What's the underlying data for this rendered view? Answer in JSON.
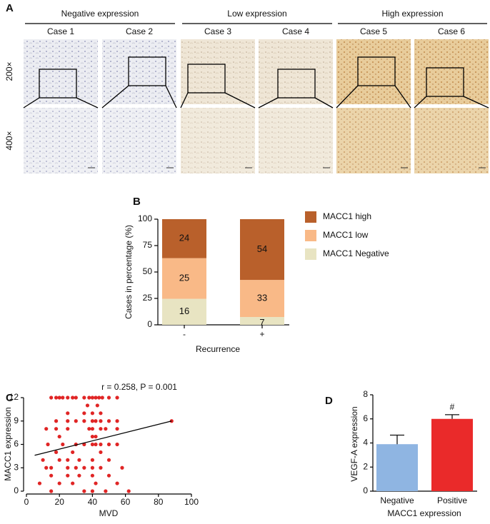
{
  "panel_a": {
    "label": "A",
    "groups": [
      "Negative expression",
      "Low expression",
      "High expression"
    ],
    "cases": [
      "Case 1",
      "Case 2",
      "Case 3",
      "Case 4",
      "Case 5",
      "Case 6"
    ],
    "magnifications": [
      "200×",
      "400×"
    ]
  },
  "chart_data": [
    {
      "type": "stacked_bar",
      "label": "B",
      "ylabel": "Cases in percentage (%)",
      "xlabel": "Recurrence",
      "categories": [
        "-",
        "+"
      ],
      "ylim": [
        0,
        100
      ],
      "yticks": [
        0,
        25,
        50,
        75,
        100
      ],
      "series": [
        {
          "name": "MACC1 Negative",
          "color": "#e8e4c2",
          "values": [
            24.6,
            7.4
          ],
          "counts": [
            16,
            7
          ]
        },
        {
          "name": "MACC1 low",
          "color": "#f9b987",
          "values": [
            38.5,
            35.1
          ],
          "counts": [
            25,
            33
          ]
        },
        {
          "name": "MACC1 high",
          "color": "#b9602b",
          "values": [
            36.9,
            57.5
          ],
          "counts": [
            24,
            54
          ]
        }
      ]
    },
    {
      "type": "scatter",
      "label": "C",
      "annotation": "r = 0.258,  P = 0.001",
      "xlabel": "MVD",
      "ylabel": "MACC1 expression",
      "color": "#e02525",
      "x": [
        15,
        18,
        20,
        22,
        25,
        28,
        30,
        35,
        38,
        40,
        42,
        44,
        46,
        50,
        55,
        37,
        43,
        25,
        35,
        40,
        45,
        18,
        25,
        30,
        35,
        40,
        42,
        45,
        50,
        55,
        88,
        12,
        18,
        25,
        38,
        40,
        45,
        48,
        55,
        20,
        40,
        42,
        13,
        22,
        30,
        35,
        40,
        42,
        45,
        50,
        55,
        18,
        28,
        45,
        10,
        20,
        25,
        32,
        40,
        50,
        12,
        15,
        25,
        30,
        35,
        40,
        45,
        58,
        15,
        25,
        32,
        40,
        50,
        8,
        20,
        28,
        42,
        55,
        15,
        35,
        40,
        48,
        62
      ],
      "y": [
        12,
        12,
        12,
        12,
        12,
        12,
        12,
        12,
        12,
        12,
        12,
        12,
        12,
        12,
        12,
        11,
        11,
        10,
        10,
        10,
        10,
        9,
        9,
        9,
        9,
        9,
        9,
        9,
        9,
        9,
        9,
        8,
        8,
        8,
        8,
        8,
        8,
        8,
        8,
        7,
        7,
        7,
        6,
        6,
        6,
        6,
        6,
        6,
        6,
        6,
        6,
        5,
        5,
        5,
        4,
        4,
        4,
        4,
        4,
        4,
        3,
        3,
        3,
        3,
        3,
        3,
        3,
        3,
        2,
        2,
        2,
        2,
        2,
        1,
        1,
        1,
        1,
        1,
        0,
        0,
        0,
        0,
        0
      ],
      "fit": {
        "x": [
          5,
          88
        ],
        "y": [
          4.6,
          9.0
        ]
      },
      "xlim": [
        0,
        100
      ],
      "xticks": [
        0,
        20,
        40,
        60,
        80,
        100
      ],
      "ylim": [
        0,
        12
      ],
      "yticks": [
        0,
        3,
        6,
        9,
        12
      ]
    },
    {
      "type": "bar",
      "label": "D",
      "ylabel": "VEGF-A expression",
      "xlabel": "MACC1 expression",
      "categories": [
        "Negative",
        "Positive"
      ],
      "values": [
        3.9,
        6.0
      ],
      "errors": [
        0.75,
        0.35
      ],
      "colors": [
        "#8fb5e2",
        "#ea2a2a"
      ],
      "marker": "#",
      "ylim": [
        0,
        8
      ],
      "yticks": [
        0,
        2,
        4,
        6,
        8
      ]
    }
  ]
}
